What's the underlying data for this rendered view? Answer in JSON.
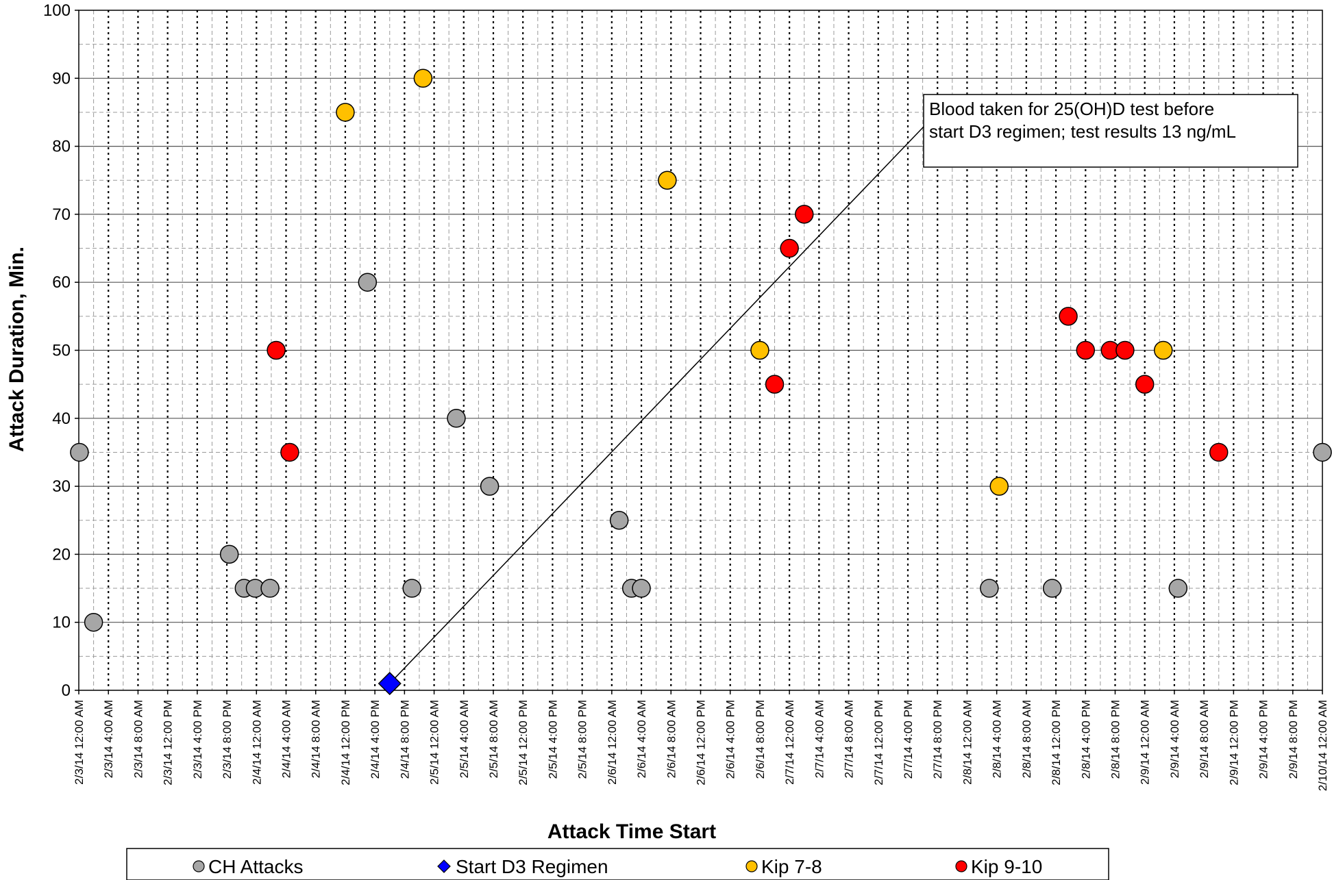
{
  "chart_data": {
    "type": "scatter",
    "xlabel": "Attack Time Start",
    "ylabel": "Attack Duration, Min.",
    "ylim": [
      0,
      100
    ],
    "yticks": [
      0,
      10,
      20,
      30,
      40,
      50,
      60,
      70,
      80,
      90,
      100
    ],
    "xlim_hours": [
      0,
      168
    ],
    "grid": true,
    "x_tick_labels": [
      "2/3/14 12:00 AM",
      "2/3/14 4:00 AM",
      "2/3/14 8:00 AM",
      "2/3/14 12:00 PM",
      "2/3/14 4:00 PM",
      "2/3/14 8:00 PM",
      "2/4/14 12:00 AM",
      "2/4/14 4:00 AM",
      "2/4/14 8:00 AM",
      "2/4/14 12:00 PM",
      "2/4/14 4:00 PM",
      "2/4/14 8:00 PM",
      "2/5/14 12:00 AM",
      "2/5/14 4:00 AM",
      "2/5/14 8:00 AM",
      "2/5/14 12:00 PM",
      "2/5/14 4:00 PM",
      "2/5/14 8:00 PM",
      "2/6/14 12:00 AM",
      "2/6/14 4:00 AM",
      "2/6/14 8:00 AM",
      "2/6/14 12:00 PM",
      "2/6/14 4:00 PM",
      "2/6/14 8:00 PM",
      "2/7/14 12:00 AM",
      "2/7/14 4:00 AM",
      "2/7/14 8:00 AM",
      "2/7/14 12:00 PM",
      "2/7/14 4:00 PM",
      "2/7/14 8:00 PM",
      "2/8/14 12:00 AM",
      "2/8/14 4:00 AM",
      "2/8/14 8:00 AM",
      "2/8/14 12:00 PM",
      "2/8/14 4:00 PM",
      "2/8/14 8:00 PM",
      "2/9/14 12:00 AM",
      "2/9/14 4:00 AM",
      "2/9/14 8:00 AM",
      "2/9/14 12:00 PM",
      "2/9/14 4:00 PM",
      "2/9/14 8:00 PM",
      "2/10/14 12:00 AM"
    ],
    "series": [
      {
        "name": "CH Attacks",
        "color": "#a6a6a6",
        "marker": "circle",
        "points": [
          {
            "x": "2/3/14 12:05 AM",
            "y": 35
          },
          {
            "x": "2/3/14 2:00 AM",
            "y": 10
          },
          {
            "x": "2/3/14 8:20 PM",
            "y": 20
          },
          {
            "x": "2/3/14 10:20 PM",
            "y": 15
          },
          {
            "x": "2/3/14 11:50 PM",
            "y": 15
          },
          {
            "x": "2/4/14 1:50 AM",
            "y": 15
          },
          {
            "x": "2/4/14 3:00 PM",
            "y": 60
          },
          {
            "x": "2/4/14 9:00 PM",
            "y": 15
          },
          {
            "x": "2/5/14 3:00 AM",
            "y": 40
          },
          {
            "x": "2/5/14 7:30 AM",
            "y": 30
          },
          {
            "x": "2/6/14 1:00 AM",
            "y": 25
          },
          {
            "x": "2/6/14 2:40 AM",
            "y": 15
          },
          {
            "x": "2/6/14 4:00 AM",
            "y": 15
          },
          {
            "x": "2/8/14 3:00 AM",
            "y": 15
          },
          {
            "x": "2/8/14 11:30 AM",
            "y": 15
          },
          {
            "x": "2/9/14 4:30 AM",
            "y": 15
          },
          {
            "x": "2/10/14 12:00 AM",
            "y": 35
          }
        ]
      },
      {
        "name": "Start D3 Regimen",
        "color": "#0000ff",
        "marker": "diamond",
        "points": [
          {
            "x": "2/4/14 6:00 PM",
            "y": 1
          }
        ]
      },
      {
        "name": "Kip 7-8",
        "color": "#ffc000",
        "marker": "circle",
        "points": [
          {
            "x": "2/4/14 12:00 PM",
            "y": 85
          },
          {
            "x": "2/4/14 10:30 PM",
            "y": 90
          },
          {
            "x": "2/6/14 7:30 AM",
            "y": 75
          },
          {
            "x": "2/6/14 8:00 PM",
            "y": 50
          },
          {
            "x": "2/8/14 4:20 AM",
            "y": 30
          },
          {
            "x": "2/9/14 2:30 AM",
            "y": 50
          }
        ]
      },
      {
        "name": "Kip 9-10",
        "color": "#ff0000",
        "marker": "circle",
        "points": [
          {
            "x": "2/4/14 2:40 AM",
            "y": 50
          },
          {
            "x": "2/4/14 4:30 AM",
            "y": 35
          },
          {
            "x": "2/6/14 10:00 PM",
            "y": 45
          },
          {
            "x": "2/7/14 12:00 AM",
            "y": 65
          },
          {
            "x": "2/7/14 2:00 AM",
            "y": 70
          },
          {
            "x": "2/8/14 1:40 PM",
            "y": 55
          },
          {
            "x": "2/8/14 4:00 PM",
            "y": 50
          },
          {
            "x": "2/8/14 7:20 PM",
            "y": 50
          },
          {
            "x": "2/8/14 9:20 PM",
            "y": 50
          },
          {
            "x": "2/9/14 12:00 AM",
            "y": 45
          },
          {
            "x": "2/9/14 10:00 AM",
            "y": 35
          }
        ]
      }
    ],
    "annotation": {
      "text_lines": [
        "Blood taken for 25(OH)D test before",
        "start D3 regimen; test results 13 ng/mL"
      ],
      "points_to_series": "Start D3 Regimen"
    },
    "legend": {
      "position": "bottom",
      "items": [
        "CH Attacks",
        "Start D3 Regimen",
        "Kip 7-8",
        "Kip 9-10"
      ]
    }
  }
}
